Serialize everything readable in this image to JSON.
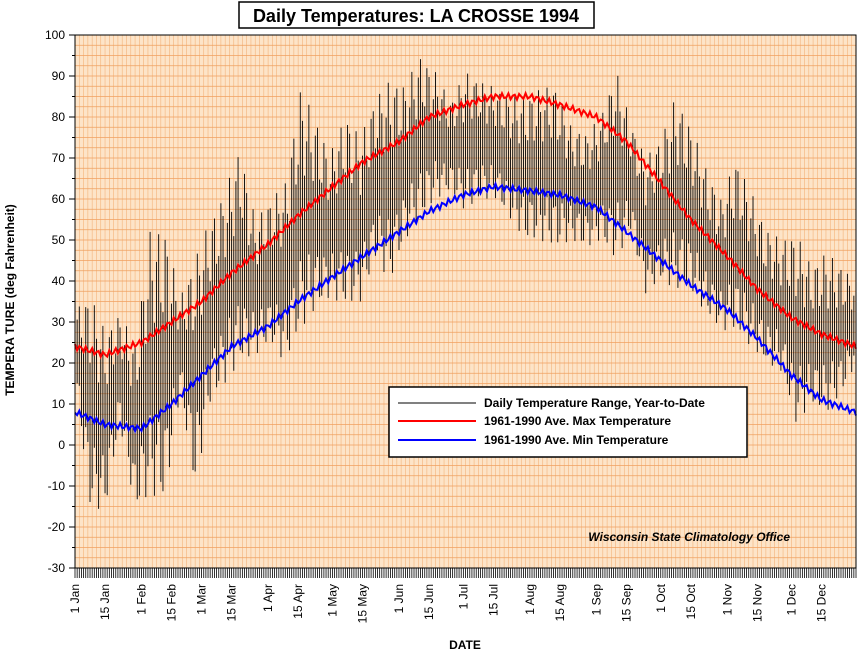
{
  "chart_data": {
    "type": "line",
    "title": "Daily Temperatures: LA CROSSE 1994",
    "xlabel": "DATE",
    "ylabel": "TEMPERA TURE (deg Fahrenheit)",
    "ylim": [
      -30,
      100
    ],
    "yticks": [
      -30,
      -20,
      -10,
      0,
      10,
      20,
      30,
      40,
      50,
      60,
      70,
      80,
      90,
      100
    ],
    "xlim_days": [
      1,
      365
    ],
    "xticks": [
      {
        "label": "1 Jan",
        "day": 1
      },
      {
        "label": "15 Jan",
        "day": 15
      },
      {
        "label": "1 Feb",
        "day": 32
      },
      {
        "label": "15 Feb",
        "day": 46
      },
      {
        "label": "1 Mar",
        "day": 60
      },
      {
        "label": "15 Mar",
        "day": 74
      },
      {
        "label": "1 Apr",
        "day": 91
      },
      {
        "label": "15 Apr",
        "day": 105
      },
      {
        "label": "1 May",
        "day": 121
      },
      {
        "label": "15 May",
        "day": 135
      },
      {
        "label": "1 Jun",
        "day": 152
      },
      {
        "label": "15 Jun",
        "day": 166
      },
      {
        "label": "1 Jul",
        "day": 182
      },
      {
        "label": "15 Jul",
        "day": 196
      },
      {
        "label": "1 Aug",
        "day": 213
      },
      {
        "label": "15 Aug",
        "day": 227
      },
      {
        "label": "1 Sep",
        "day": 244
      },
      {
        "label": "15 Sep",
        "day": 258
      },
      {
        "label": "1 Oct",
        "day": 274
      },
      {
        "label": "15 Oct",
        "day": 288
      },
      {
        "label": "1 Nov",
        "day": 305
      },
      {
        "label": "15 Nov",
        "day": 319
      },
      {
        "label": "1 Dec",
        "day": 335
      },
      {
        "label": "15 Dec",
        "day": 349
      }
    ],
    "grid": true,
    "legend_position": "center-right",
    "annotation": "Wisconsin State Climatology Office",
    "series": [
      {
        "name": "Daily Temperature Range, Year-to-Date",
        "kind": "range",
        "color": "#000000",
        "days": [
          1,
          8,
          15,
          22,
          29,
          36,
          43,
          50,
          57,
          64,
          71,
          78,
          85,
          92,
          99,
          106,
          113,
          120,
          127,
          134,
          141,
          148,
          155,
          162,
          169,
          176,
          183,
          190,
          197,
          204,
          211,
          218,
          225,
          232,
          239,
          246,
          253,
          260,
          267,
          274,
          281,
          288,
          295,
          302,
          309,
          316,
          323,
          330,
          337,
          344,
          351,
          358,
          365
        ],
        "low": [
          15,
          -15,
          -16,
          5,
          -16,
          -12,
          -14,
          13,
          -11,
          10,
          15,
          20,
          22,
          25,
          20,
          28,
          33,
          36,
          34,
          35,
          45,
          40,
          50,
          55,
          60,
          62,
          57,
          60,
          60,
          55,
          50,
          50,
          48,
          50,
          48,
          50,
          45,
          52,
          37,
          40,
          38,
          38,
          32,
          28,
          28,
          24,
          20,
          18,
          5,
          10,
          8,
          12,
          20
        ],
        "high": [
          33,
          37,
          28,
          32,
          25,
          52,
          53,
          36,
          46,
          55,
          62,
          73,
          55,
          60,
          64,
          87,
          80,
          71,
          81,
          75,
          85,
          89,
          88,
          95,
          91,
          84,
          91,
          89,
          87,
          85,
          85,
          87,
          88,
          78,
          76,
          80,
          92,
          79,
          70,
          75,
          85,
          78,
          68,
          60,
          70,
          62,
          53,
          50,
          52,
          44,
          47,
          44,
          40
        ]
      },
      {
        "name": "1961-1990 Ave. Max Temperature",
        "kind": "line",
        "color": "#ff0000",
        "days": [
          1,
          15,
          32,
          46,
          60,
          74,
          91,
          105,
          121,
          135,
          152,
          166,
          182,
          196,
          213,
          227,
          244,
          258,
          274,
          288,
          305,
          319,
          335,
          349,
          365
        ],
        "values": [
          24,
          22,
          25,
          30,
          35,
          42,
          49,
          56,
          63,
          69,
          74,
          80,
          83,
          85,
          85,
          83,
          80,
          74,
          64,
          55,
          46,
          38,
          31,
          27,
          24
        ]
      },
      {
        "name": "1961-1990 Ave. Min Temperature",
        "kind": "line",
        "color": "#0000ff",
        "days": [
          1,
          15,
          32,
          46,
          60,
          74,
          91,
          105,
          121,
          135,
          152,
          166,
          182,
          196,
          213,
          227,
          244,
          258,
          274,
          288,
          305,
          319,
          335,
          349,
          365
        ],
        "values": [
          8,
          5,
          4,
          10,
          17,
          24,
          29,
          35,
          41,
          46,
          52,
          57,
          61,
          63,
          62,
          61,
          58,
          52,
          45,
          39,
          33,
          26,
          17,
          11,
          8
        ]
      }
    ]
  }
}
